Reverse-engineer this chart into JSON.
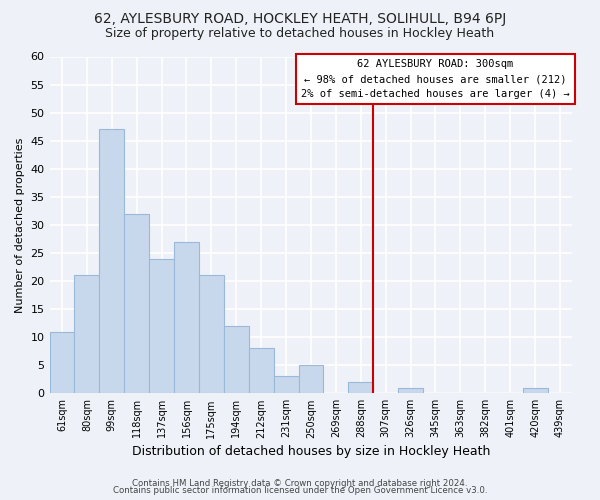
{
  "title": "62, AYLESBURY ROAD, HOCKLEY HEATH, SOLIHULL, B94 6PJ",
  "subtitle": "Size of property relative to detached houses in Hockley Heath",
  "xlabel": "Distribution of detached houses by size in Hockley Heath",
  "ylabel": "Number of detached properties",
  "footer_line1": "Contains HM Land Registry data © Crown copyright and database right 2024.",
  "footer_line2": "Contains public sector information licensed under the Open Government Licence v3.0.",
  "bin_labels": [
    "61sqm",
    "80sqm",
    "99sqm",
    "118sqm",
    "137sqm",
    "156sqm",
    "175sqm",
    "194sqm",
    "212sqm",
    "231sqm",
    "250sqm",
    "269sqm",
    "288sqm",
    "307sqm",
    "326sqm",
    "345sqm",
    "363sqm",
    "382sqm",
    "401sqm",
    "420sqm",
    "439sqm"
  ],
  "bar_values": [
    11,
    21,
    47,
    32,
    24,
    27,
    21,
    12,
    8,
    3,
    5,
    0,
    2,
    0,
    1,
    0,
    0,
    0,
    0,
    1,
    0
  ],
  "bar_color": "#c8d8ec",
  "bar_edge_color": "#9ab8d8",
  "annotation_title": "62 AYLESBURY ROAD: 300sqm",
  "annotation_line1": "← 98% of detached houses are smaller (212)",
  "annotation_line2": "2% of semi-detached houses are larger (4) →",
  "annotation_box_color": "#ffffff",
  "annotation_box_edge_color": "#cc0000",
  "property_vline_color": "#cc0000",
  "ylim": [
    0,
    60
  ],
  "yticks": [
    0,
    5,
    10,
    15,
    20,
    25,
    30,
    35,
    40,
    45,
    50,
    55,
    60
  ],
  "background_color": "#eef2f8",
  "plot_bg_color": "#eef2f8",
  "grid_color": "#ffffff",
  "title_fontsize": 10,
  "subtitle_fontsize": 9
}
